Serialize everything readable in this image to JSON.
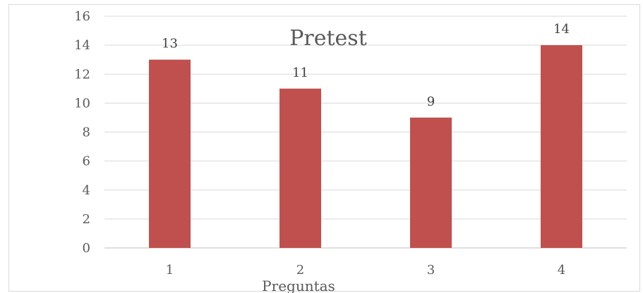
{
  "chart_data": {
    "type": "bar",
    "title": "Pretest",
    "xlabel": "Preguntas",
    "ylabel": "",
    "categories": [
      "1",
      "2",
      "3",
      "4"
    ],
    "series": [
      {
        "values": [
          13,
          11,
          9,
          14
        ],
        "color": "#c0504d"
      }
    ],
    "ylim": [
      0,
      16
    ],
    "yticks": [
      0,
      2,
      4,
      6,
      8,
      10,
      12,
      14,
      16
    ],
    "grid": true,
    "legend": "none",
    "colors": {
      "bar": "#c0504d",
      "grid": "#d9d9d9",
      "axis": "#bfbfbf",
      "text": "#595959"
    }
  }
}
